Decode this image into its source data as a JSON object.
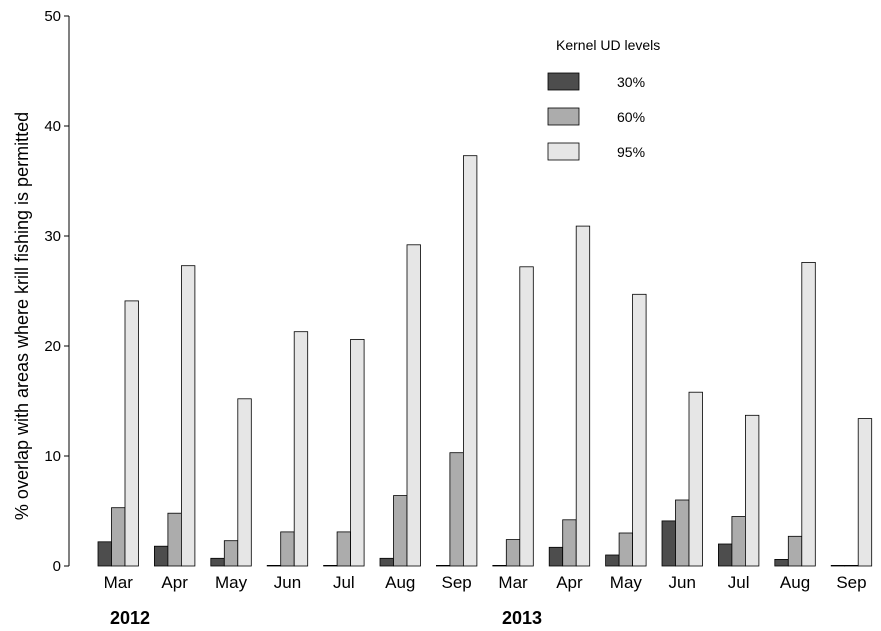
{
  "chart_data": {
    "type": "bar",
    "ylabel": "% overlap with areas where krill fishing is permitted",
    "ylim": [
      0,
      50
    ],
    "yticks": [
      0,
      10,
      20,
      30,
      40,
      50
    ],
    "grid": false,
    "categories": [
      "Mar",
      "Apr",
      "May",
      "Jun",
      "Jul",
      "Aug",
      "Sep",
      "Mar",
      "Apr",
      "May",
      "Jun",
      "Jul",
      "Aug",
      "Sep"
    ],
    "groups": [
      {
        "label": "2012",
        "start": 0,
        "count": 7
      },
      {
        "label": "2013",
        "start": 7,
        "count": 7
      }
    ],
    "legend": {
      "title": "Kernel UD levels",
      "position": "top-right"
    },
    "series": [
      {
        "name": "30%",
        "color": "#4d4d4d",
        "values": [
          2.2,
          1.8,
          0.7,
          0,
          0,
          0.7,
          0,
          0,
          1.7,
          1.0,
          4.1,
          2.0,
          0.6,
          0
        ]
      },
      {
        "name": "60%",
        "color": "#acacac",
        "values": [
          5.3,
          4.8,
          2.3,
          3.1,
          3.1,
          6.4,
          10.3,
          2.4,
          4.2,
          3.0,
          6.0,
          4.5,
          2.7,
          0
        ]
      },
      {
        "name": "95%",
        "color": "#e6e6e6",
        "values": [
          24.1,
          27.3,
          15.2,
          21.3,
          20.6,
          29.2,
          37.3,
          27.2,
          30.9,
          24.7,
          15.8,
          13.7,
          27.6,
          13.4
        ]
      }
    ]
  }
}
